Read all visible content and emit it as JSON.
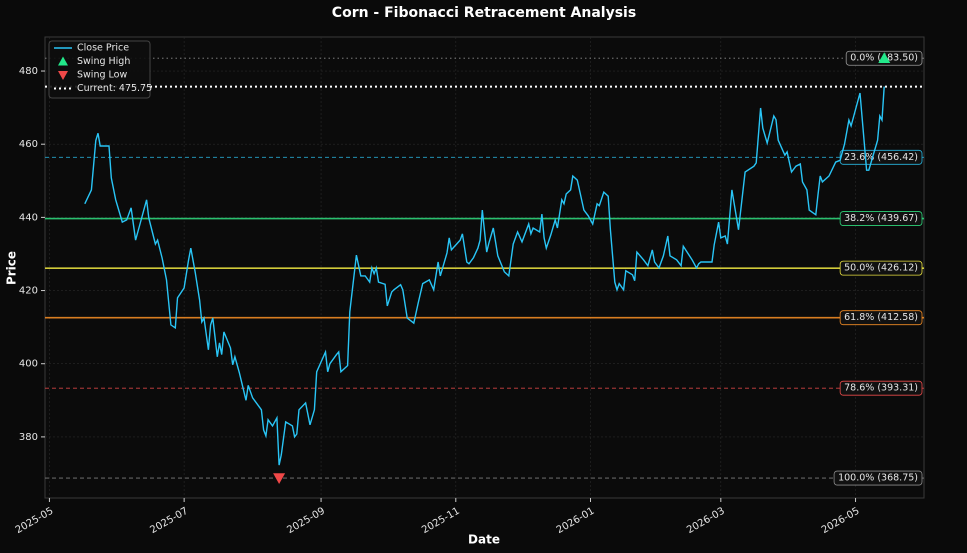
{
  "chart_data": {
    "type": "line",
    "title": "Corn - Fibonacci Retracement Analysis",
    "x_label": "Date",
    "y_label": "Price",
    "xlim": [
      "2025-04-29",
      "2026-06-01"
    ],
    "ylim": [
      363.3,
      489.3
    ],
    "xticks": [
      {
        "value": "2025-05-01",
        "label": "2025-05"
      },
      {
        "value": "2025-07-01",
        "label": "2025-07"
      },
      {
        "value": "2025-09-01",
        "label": "2025-09"
      },
      {
        "value": "2025-11-01",
        "label": "2025-11"
      },
      {
        "value": "2026-01-01",
        "label": "2026-01"
      },
      {
        "value": "2026-03-01",
        "label": "2026-03"
      },
      {
        "value": "2026-05-01",
        "label": "2026-05"
      }
    ],
    "yticks": [
      380,
      400,
      420,
      440,
      460,
      480
    ],
    "grid": true,
    "legend_position": "upper left",
    "series": [
      {
        "name": "Close Price",
        "color": "#29c5f6",
        "x": [
          "2025-05-17",
          "2025-05-20",
          "2025-05-22",
          "2025-05-23",
          "2025-05-24",
          "2025-05-28",
          "2025-05-29",
          "2025-05-31",
          "2025-06-03",
          "2025-06-05",
          "2025-06-07",
          "2025-06-09",
          "2025-06-11",
          "2025-06-14",
          "2025-06-15",
          "2025-06-18",
          "2025-06-19",
          "2025-06-21",
          "2025-06-23",
          "2025-06-25",
          "2025-06-27",
          "2025-06-28",
          "2025-07-01",
          "2025-07-03",
          "2025-07-04",
          "2025-07-06",
          "2025-07-08",
          "2025-07-09",
          "2025-07-10",
          "2025-07-12",
          "2025-07-13",
          "2025-07-14",
          "2025-07-16",
          "2025-07-17",
          "2025-07-18",
          "2025-07-19",
          "2025-07-22",
          "2025-07-23",
          "2025-07-24",
          "2025-07-26",
          "2025-07-29",
          "2025-07-30",
          "2025-08-01",
          "2025-08-05",
          "2025-08-06",
          "2025-08-07",
          "2025-08-08",
          "2025-08-10",
          "2025-08-12",
          "2025-08-13",
          "2025-08-14",
          "2025-08-16",
          "2025-08-19",
          "2025-08-20",
          "2025-08-21",
          "2025-08-22",
          "2025-08-25",
          "2025-08-27",
          "2025-08-29",
          "2025-08-30",
          "2025-09-01",
          "2025-09-03",
          "2025-09-04",
          "2025-09-05",
          "2025-09-08",
          "2025-09-09",
          "2025-09-10",
          "2025-09-13",
          "2025-09-14",
          "2025-09-17",
          "2025-09-19",
          "2025-09-21",
          "2025-09-23",
          "2025-09-24",
          "2025-09-25",
          "2025-09-26",
          "2025-09-27",
          "2025-09-30",
          "2025-10-01",
          "2025-10-03",
          "2025-10-04",
          "2025-10-07",
          "2025-10-08",
          "2025-10-10",
          "2025-10-13",
          "2025-10-15",
          "2025-10-17",
          "2025-10-20",
          "2025-10-22",
          "2025-10-24",
          "2025-10-25",
          "2025-10-28",
          "2025-10-29",
          "2025-10-30",
          "2025-11-03",
          "2025-11-04",
          "2025-11-06",
          "2025-11-07",
          "2025-11-09",
          "2025-11-11",
          "2025-11-12",
          "2025-11-13",
          "2025-11-15",
          "2025-11-16",
          "2025-11-18",
          "2025-11-20",
          "2025-11-23",
          "2025-11-25",
          "2025-11-27",
          "2025-11-29",
          "2025-12-01",
          "2025-12-04",
          "2025-12-05",
          "2025-12-06",
          "2025-12-09",
          "2025-12-10",
          "2025-12-11",
          "2025-12-12",
          "2025-12-14",
          "2025-12-16",
          "2025-12-17",
          "2025-12-19",
          "2025-12-20",
          "2025-12-21",
          "2025-12-23",
          "2025-12-24",
          "2025-12-26",
          "2025-12-29",
          "2025-12-31",
          "2026-01-02",
          "2026-01-04",
          "2026-01-05",
          "2026-01-07",
          "2026-01-09",
          "2026-01-10",
          "2026-01-12",
          "2026-01-13",
          "2026-01-14",
          "2026-01-16",
          "2026-01-17",
          "2026-01-20",
          "2026-01-21",
          "2026-01-22",
          "2026-01-25",
          "2026-01-27",
          "2026-01-29",
          "2026-01-30",
          "2026-02-01",
          "2026-02-03",
          "2026-02-05",
          "2026-02-06",
          "2026-02-09",
          "2026-02-11",
          "2026-02-12",
          "2026-02-16",
          "2026-02-18",
          "2026-02-19",
          "2026-02-20",
          "2026-02-25",
          "2026-02-26",
          "2026-02-28",
          "2026-03-01",
          "2026-03-03",
          "2026-03-04",
          "2026-03-06",
          "2026-03-09",
          "2026-03-12",
          "2026-03-16",
          "2026-03-17",
          "2026-03-19",
          "2026-03-20",
          "2026-03-22",
          "2026-03-25",
          "2026-03-26",
          "2026-03-27",
          "2026-03-30",
          "2026-03-31",
          "2026-04-02",
          "2026-04-04",
          "2026-04-06",
          "2026-04-07",
          "2026-04-09",
          "2026-04-10",
          "2026-04-13",
          "2026-04-14",
          "2026-04-15",
          "2026-04-16",
          "2026-04-19",
          "2026-04-22",
          "2026-04-24",
          "2026-04-26",
          "2026-04-28",
          "2026-04-29",
          "2026-05-03",
          "2026-05-06",
          "2026-05-07",
          "2026-05-11",
          "2026-05-12",
          "2026-05-13",
          "2026-05-14"
        ],
        "values": [
          443.7,
          447.5,
          461,
          463,
          459.5,
          459.5,
          450.8,
          444.8,
          438.7,
          439.3,
          442.6,
          433.8,
          438.2,
          444.8,
          439.8,
          432.7,
          433.8,
          428.9,
          422.9,
          410.6,
          409.8,
          418,
          420.7,
          428.4,
          431.6,
          425,
          417.4,
          411.4,
          412.5,
          403.8,
          410.6,
          412.5,
          401.9,
          405.7,
          402.5,
          408.7,
          404.3,
          399.7,
          401.9,
          397.5,
          390,
          394.1,
          390.7,
          387.4,
          381.9,
          380.3,
          384.7,
          383,
          385.2,
          372.3,
          375.1,
          384.1,
          383,
          380,
          380.8,
          387.4,
          389.3,
          383.3,
          387.4,
          397.8,
          400.5,
          403.2,
          397.8,
          400,
          402.5,
          403.2,
          397.8,
          399.5,
          414.2,
          429.7,
          424,
          424,
          422.3,
          426.2,
          424.6,
          426.2,
          422.3,
          421.7,
          415.8,
          419.6,
          420.2,
          421.6,
          420.2,
          412.5,
          411.1,
          416.6,
          421.9,
          422.9,
          420.2,
          427.8,
          424,
          430.3,
          434.4,
          431.1,
          433.8,
          435.5,
          427.8,
          427.3,
          429,
          431.6,
          433.8,
          442,
          430.5,
          433,
          437.1,
          429.5,
          425.1,
          424,
          432.7,
          436,
          433.3,
          438.2,
          435.5,
          437.1,
          436,
          440.9,
          434.4,
          431.6,
          435.2,
          439.3,
          437.1,
          444.8,
          443.7,
          446.4,
          447.5,
          451.3,
          450.2,
          442,
          440.4,
          438.2,
          443.7,
          443.2,
          446.9,
          445.8,
          436.6,
          422.3,
          420.2,
          421.9,
          420.2,
          425.4,
          424.3,
          422.7,
          430.5,
          428.4,
          426.8,
          431.1,
          427.8,
          426.2,
          429.5,
          434.9,
          429.5,
          428.4,
          426.8,
          432.1,
          428.4,
          426.2,
          427.3,
          427.8,
          427.8,
          432.5,
          438.7,
          434.4,
          434.9,
          432.7,
          447.5,
          436.6,
          452.4,
          454,
          454.9,
          469.9,
          464.4,
          460.3,
          467.7,
          466.7,
          461.1,
          457,
          457.9,
          452.4,
          454,
          454.6,
          449.7,
          447.5,
          442,
          440.7,
          446.2,
          451.3,
          449.7,
          451.3,
          455.1,
          455.6,
          460,
          466.6,
          465,
          474,
          452.9,
          452.9,
          461.1,
          467.7,
          466.6,
          475.75
        ]
      }
    ],
    "markers": [
      {
        "name": "Swing High",
        "color": "#22e88a",
        "shape": "triangle-up",
        "x": "2026-05-14",
        "value": 483.5
      },
      {
        "name": "Swing Low",
        "color": "#f04848",
        "shape": "triangle-down",
        "x": "2025-08-13",
        "value": 368.75
      }
    ],
    "current_line": {
      "name": "Current: 475.75",
      "value": 475.75,
      "color": "#ffffff",
      "style": "dotted"
    },
    "levels": [
      {
        "label": "0.0% (483.50)",
        "value": 483.5,
        "color": "#9a9a9a",
        "style": "dotted"
      },
      {
        "label": "23.6% (456.42)",
        "value": 456.42,
        "color": "#29b6e0",
        "style": "dashed"
      },
      {
        "label": "38.2% (439.67)",
        "value": 439.67,
        "color": "#2ed47a",
        "style": "solid"
      },
      {
        "label": "50.0% (426.12)",
        "value": 426.12,
        "color": "#e8e040",
        "style": "solid"
      },
      {
        "label": "61.8% (412.58)",
        "value": 412.58,
        "color": "#f08a24",
        "style": "solid"
      },
      {
        "label": "78.6% (393.31)",
        "value": 393.31,
        "color": "#e84a4a",
        "style": "dashed"
      },
      {
        "label": "100.0% (368.75)",
        "value": 368.75,
        "color": "#8a8a8a",
        "style": "dashed"
      }
    ]
  }
}
